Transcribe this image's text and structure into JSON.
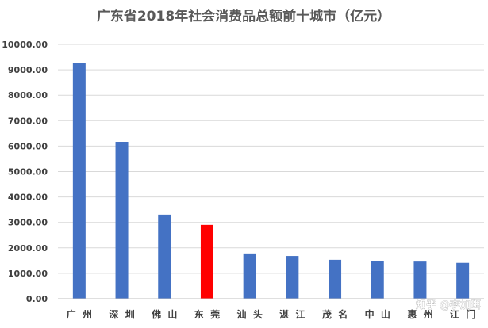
{
  "chart_data": {
    "type": "bar",
    "title": "广东省2018年社会消费品总额前十城市（亿元）",
    "xlabel": "",
    "ylabel": "",
    "ylim": [
      0,
      10000
    ],
    "y_ticks": [
      "0.00",
      "1000.00",
      "2000.00",
      "3000.00",
      "4000.00",
      "5000.00",
      "6000.00",
      "7000.00",
      "8000.00",
      "9000.00",
      "10000.00"
    ],
    "grid": true,
    "categories": [
      "广 州",
      "深 圳",
      "佛 山",
      "东 莞",
      "汕 头",
      "湛 江",
      "茂 名",
      "中 山",
      "惠 州",
      "江 门"
    ],
    "values": [
      9256,
      6168,
      3306,
      2902,
      1780,
      1680,
      1530,
      1490,
      1460,
      1410
    ],
    "colors": [
      "#4472c4",
      "#4472c4",
      "#4472c4",
      "#ff0000",
      "#4472c4",
      "#4472c4",
      "#4472c4",
      "#4472c4",
      "#4472c4",
      "#4472c4"
    ]
  },
  "watermark": "知乎 @李加珥"
}
